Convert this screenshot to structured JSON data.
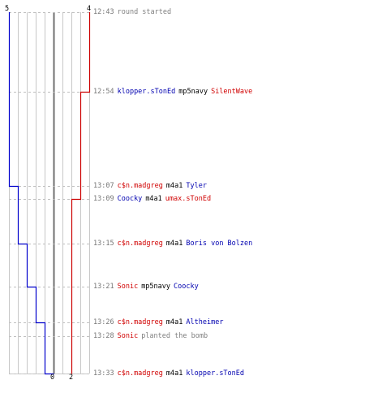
{
  "colors": {
    "ct": "#0000cc",
    "t": "#cc0000",
    "grid": "#c8c8c8",
    "center": "#707070",
    "dash": "#c0c0c0",
    "time": "#777777"
  },
  "axis_labels": {
    "top_ct": "5",
    "top_t": "4",
    "bottom_ct": "0",
    "bottom_t": "2"
  },
  "events": [
    {
      "time": "12:43",
      "parts": [
        {
          "text": "round started",
          "role": "grey"
        }
      ]
    },
    {
      "time": "12:54",
      "parts": [
        {
          "text": "klopper.sTonEd",
          "role": "blue"
        },
        {
          "text": "mp5navy",
          "role": "black"
        },
        {
          "text": "SilentWave",
          "role": "red"
        }
      ]
    },
    {
      "time": "13:07",
      "parts": [
        {
          "text": "c$n.madgreg",
          "role": "red"
        },
        {
          "text": "m4a1",
          "role": "black"
        },
        {
          "text": "Tyler",
          "role": "blue"
        }
      ]
    },
    {
      "time": "13:09",
      "parts": [
        {
          "text": "Coocky",
          "role": "blue"
        },
        {
          "text": "m4a1",
          "role": "black"
        },
        {
          "text": "umax.sTonEd",
          "role": "red"
        }
      ]
    },
    {
      "time": "13:15",
      "parts": [
        {
          "text": "c$n.madgreg",
          "role": "red"
        },
        {
          "text": "m4a1",
          "role": "black"
        },
        {
          "text": "Boris von Bolzen",
          "role": "blue"
        }
      ]
    },
    {
      "time": "13:21",
      "parts": [
        {
          "text": "Sonic",
          "role": "red"
        },
        {
          "text": "mp5navy",
          "role": "black"
        },
        {
          "text": "Coocky",
          "role": "blue"
        }
      ]
    },
    {
      "time": "13:26",
      "parts": [
        {
          "text": "c$n.madgreg",
          "role": "red"
        },
        {
          "text": "m4a1",
          "role": "black"
        },
        {
          "text": "Altheimer",
          "role": "blue"
        }
      ]
    },
    {
      "time": "13:28",
      "parts": [
        {
          "text": "Sonic",
          "role": "red"
        },
        {
          "text": "planted the bomb",
          "role": "grey"
        }
      ]
    },
    {
      "time": "13:33",
      "parts": [
        {
          "text": "c$n.madgreg",
          "role": "red"
        },
        {
          "text": "m4a1",
          "role": "black"
        },
        {
          "text": "klopper.sTonEd",
          "role": "blue"
        }
      ]
    }
  ],
  "alive_counts": {
    "ct": [
      5,
      5,
      4,
      4,
      3,
      2,
      1,
      1,
      0
    ],
    "t": [
      4,
      3,
      3,
      2,
      2,
      2,
      2,
      2,
      2
    ]
  }
}
